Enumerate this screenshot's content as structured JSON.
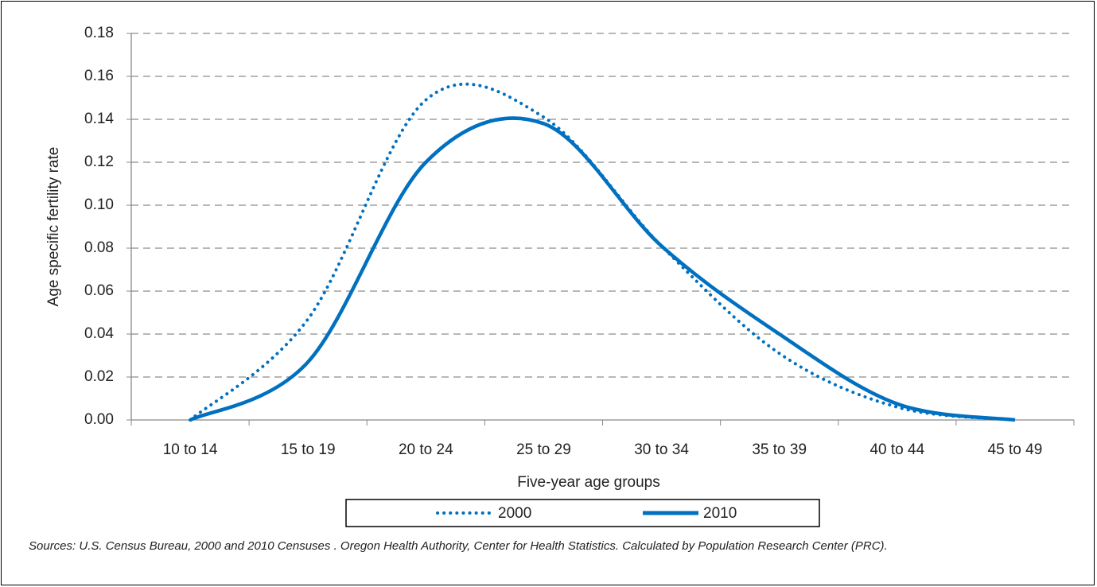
{
  "chart_data": {
    "type": "line",
    "x_label": "Five-year age groups",
    "y_label": "Age specific fertility rate",
    "categories": [
      "10 to 14",
      "15 to 19",
      "20 to 24",
      "25 to 29",
      "30 to 34",
      "35 to 39",
      "40 to 44",
      "45 to 49"
    ],
    "series": [
      {
        "name": "2000",
        "color": "#0070c0",
        "style": "dotted",
        "values": [
          0,
          0.047,
          0.149,
          0.141,
          0.081,
          0.031,
          0.006,
          0
        ]
      },
      {
        "name": "2010",
        "color": "#0070c0",
        "style": "solid",
        "values": [
          0,
          0.027,
          0.12,
          0.138,
          0.081,
          0.04,
          0.0075,
          0
        ]
      }
    ],
    "ylim": [
      0,
      0.18
    ],
    "yticks": [
      {
        "value": 0,
        "label": "0.00"
      },
      {
        "value": 0.02,
        "label": "0.02"
      },
      {
        "value": 0.04,
        "label": "0.04"
      },
      {
        "value": 0.06,
        "label": "0.06"
      },
      {
        "value": 0.08,
        "label": "0.08"
      },
      {
        "value": 0.1,
        "label": "0.10"
      },
      {
        "value": 0.12,
        "label": "0.12"
      },
      {
        "value": 0.14,
        "label": "0.14"
      },
      {
        "value": 0.16,
        "label": "0.16"
      },
      {
        "value": 0.18,
        "label": "0.18"
      }
    ],
    "grid": true,
    "legend": "bottom",
    "source": "Sources: U.S. Census Bureau, 2000 and 2010 Censuses . Oregon Health Authority, Center for Health Statistics. Calculated by Population Research Center (PRC)."
  }
}
